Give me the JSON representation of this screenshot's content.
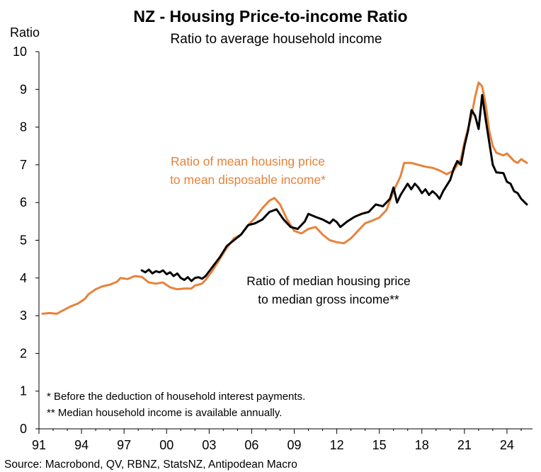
{
  "chart_data": {
    "type": "line",
    "title": "NZ - Housing Price-to-income Ratio",
    "subtitle": "Ratio to average household income",
    "ylabel": "Ratio",
    "xlabel": "",
    "ylim": [
      0,
      10
    ],
    "xlim": [
      1991,
      2025.8
    ],
    "yticks": [
      "0",
      "1",
      "2",
      "3",
      "4",
      "5",
      "6",
      "7",
      "8",
      "9",
      "10"
    ],
    "xticks": [
      "91",
      "94",
      "97",
      "00",
      "03",
      "06",
      "09",
      "12",
      "15",
      "18",
      "21",
      "24"
    ],
    "grid": false,
    "series": [
      {
        "name": "Ratio of mean housing price to mean disposable income*",
        "color": "#E8823A",
        "points": [
          [
            1991.25,
            3.05
          ],
          [
            1991.75,
            3.07
          ],
          [
            1992.25,
            3.05
          ],
          [
            1992.75,
            3.15
          ],
          [
            1993.25,
            3.25
          ],
          [
            1993.75,
            3.32
          ],
          [
            1994.25,
            3.45
          ],
          [
            1994.5,
            3.57
          ],
          [
            1995.0,
            3.7
          ],
          [
            1995.5,
            3.78
          ],
          [
            1996.0,
            3.82
          ],
          [
            1996.5,
            3.9
          ],
          [
            1996.75,
            4.0
          ],
          [
            1997.25,
            3.97
          ],
          [
            1997.75,
            4.05
          ],
          [
            1998.25,
            4.03
          ],
          [
            1998.75,
            3.88
          ],
          [
            1999.25,
            3.85
          ],
          [
            1999.75,
            3.88
          ],
          [
            2000.25,
            3.75
          ],
          [
            2000.75,
            3.7
          ],
          [
            2001.25,
            3.72
          ],
          [
            2001.75,
            3.72
          ],
          [
            2002.0,
            3.8
          ],
          [
            2002.5,
            3.85
          ],
          [
            2002.75,
            3.95
          ],
          [
            2003.25,
            4.2
          ],
          [
            2003.75,
            4.5
          ],
          [
            2004.25,
            4.8
          ],
          [
            2004.75,
            5.05
          ],
          [
            2005.25,
            5.15
          ],
          [
            2005.75,
            5.4
          ],
          [
            2006.25,
            5.6
          ],
          [
            2006.75,
            5.85
          ],
          [
            2007.25,
            6.05
          ],
          [
            2007.6,
            6.12
          ],
          [
            2008.0,
            5.95
          ],
          [
            2008.5,
            5.55
          ],
          [
            2009.0,
            5.25
          ],
          [
            2009.5,
            5.18
          ],
          [
            2010.0,
            5.3
          ],
          [
            2010.5,
            5.35
          ],
          [
            2011.0,
            5.15
          ],
          [
            2011.5,
            5.0
          ],
          [
            2012.0,
            4.95
          ],
          [
            2012.5,
            4.92
          ],
          [
            2013.0,
            5.05
          ],
          [
            2013.5,
            5.25
          ],
          [
            2014.0,
            5.45
          ],
          [
            2014.5,
            5.52
          ],
          [
            2015.0,
            5.6
          ],
          [
            2015.5,
            5.8
          ],
          [
            2016.0,
            6.3
          ],
          [
            2016.5,
            6.7
          ],
          [
            2016.75,
            7.05
          ],
          [
            2017.25,
            7.05
          ],
          [
            2017.75,
            7.0
          ],
          [
            2018.25,
            6.95
          ],
          [
            2018.75,
            6.92
          ],
          [
            2019.25,
            6.85
          ],
          [
            2019.75,
            6.75
          ],
          [
            2020.25,
            6.85
          ],
          [
            2020.5,
            7.0
          ],
          [
            2020.75,
            7.15
          ],
          [
            2021.0,
            7.6
          ],
          [
            2021.5,
            8.3
          ],
          [
            2021.75,
            8.8
          ],
          [
            2022.0,
            9.18
          ],
          [
            2022.25,
            9.08
          ],
          [
            2022.5,
            8.6
          ],
          [
            2022.75,
            7.9
          ],
          [
            2023.0,
            7.5
          ],
          [
            2023.25,
            7.32
          ],
          [
            2023.75,
            7.25
          ],
          [
            2024.0,
            7.3
          ],
          [
            2024.25,
            7.2
          ],
          [
            2024.5,
            7.1
          ],
          [
            2024.75,
            7.05
          ],
          [
            2025.0,
            7.15
          ],
          [
            2025.4,
            7.05
          ]
        ]
      },
      {
        "name": "Ratio of median housing price to median gross income**",
        "color": "#000000",
        "points": [
          [
            1998.25,
            4.2
          ],
          [
            1998.5,
            4.15
          ],
          [
            1998.75,
            4.22
          ],
          [
            1999.0,
            4.12
          ],
          [
            1999.25,
            4.18
          ],
          [
            1999.5,
            4.15
          ],
          [
            1999.75,
            4.2
          ],
          [
            2000.0,
            4.1
          ],
          [
            2000.25,
            4.15
          ],
          [
            2000.5,
            4.05
          ],
          [
            2000.75,
            4.12
          ],
          [
            2001.0,
            4.0
          ],
          [
            2001.25,
            3.95
          ],
          [
            2001.5,
            4.02
          ],
          [
            2001.75,
            3.92
          ],
          [
            2002.0,
            4.0
          ],
          [
            2002.25,
            4.02
          ],
          [
            2002.5,
            3.98
          ],
          [
            2002.75,
            4.05
          ],
          [
            2003.25,
            4.3
          ],
          [
            2003.75,
            4.55
          ],
          [
            2004.25,
            4.85
          ],
          [
            2004.75,
            5.0
          ],
          [
            2005.25,
            5.15
          ],
          [
            2005.75,
            5.4
          ],
          [
            2006.25,
            5.45
          ],
          [
            2006.75,
            5.55
          ],
          [
            2007.25,
            5.75
          ],
          [
            2007.75,
            5.82
          ],
          [
            2008.25,
            5.55
          ],
          [
            2008.75,
            5.35
          ],
          [
            2009.25,
            5.3
          ],
          [
            2009.75,
            5.5
          ],
          [
            2010.0,
            5.7
          ],
          [
            2010.5,
            5.62
          ],
          [
            2011.0,
            5.55
          ],
          [
            2011.5,
            5.45
          ],
          [
            2011.75,
            5.55
          ],
          [
            2012.0,
            5.48
          ],
          [
            2012.25,
            5.35
          ],
          [
            2012.75,
            5.5
          ],
          [
            2013.25,
            5.62
          ],
          [
            2013.75,
            5.7
          ],
          [
            2014.25,
            5.75
          ],
          [
            2014.75,
            5.95
          ],
          [
            2015.25,
            5.9
          ],
          [
            2015.75,
            6.1
          ],
          [
            2016.0,
            6.4
          ],
          [
            2016.25,
            6.0
          ],
          [
            2016.5,
            6.2
          ],
          [
            2016.75,
            6.35
          ],
          [
            2017.0,
            6.5
          ],
          [
            2017.25,
            6.35
          ],
          [
            2017.5,
            6.5
          ],
          [
            2017.75,
            6.4
          ],
          [
            2018.0,
            6.25
          ],
          [
            2018.25,
            6.35
          ],
          [
            2018.5,
            6.2
          ],
          [
            2018.75,
            6.3
          ],
          [
            2019.0,
            6.22
          ],
          [
            2019.25,
            6.1
          ],
          [
            2019.5,
            6.3
          ],
          [
            2019.75,
            6.45
          ],
          [
            2020.0,
            6.6
          ],
          [
            2020.25,
            6.9
          ],
          [
            2020.5,
            7.1
          ],
          [
            2020.75,
            7.0
          ],
          [
            2021.0,
            7.5
          ],
          [
            2021.25,
            7.9
          ],
          [
            2021.5,
            8.45
          ],
          [
            2021.75,
            8.3
          ],
          [
            2022.0,
            7.95
          ],
          [
            2022.25,
            8.85
          ],
          [
            2022.5,
            8.2
          ],
          [
            2022.75,
            7.6
          ],
          [
            2023.0,
            7.0
          ],
          [
            2023.25,
            6.8
          ],
          [
            2023.75,
            6.78
          ],
          [
            2024.0,
            6.55
          ],
          [
            2024.25,
            6.5
          ],
          [
            2024.5,
            6.3
          ],
          [
            2024.75,
            6.25
          ],
          [
            2025.0,
            6.1
          ],
          [
            2025.4,
            5.95
          ]
        ]
      }
    ],
    "annotations": {
      "orange_label": [
        "Ratio of mean housing price",
        "to mean disposable income*"
      ],
      "black_label": [
        "Ratio of median housing price",
        "to median gross income**"
      ]
    },
    "notes": [
      "* Before the deduction of household interest payments.",
      "** Median household income is available annually."
    ],
    "source": "Source: Macrobond, QV, RBNZ, StatsNZ, Antipodean Macro"
  }
}
